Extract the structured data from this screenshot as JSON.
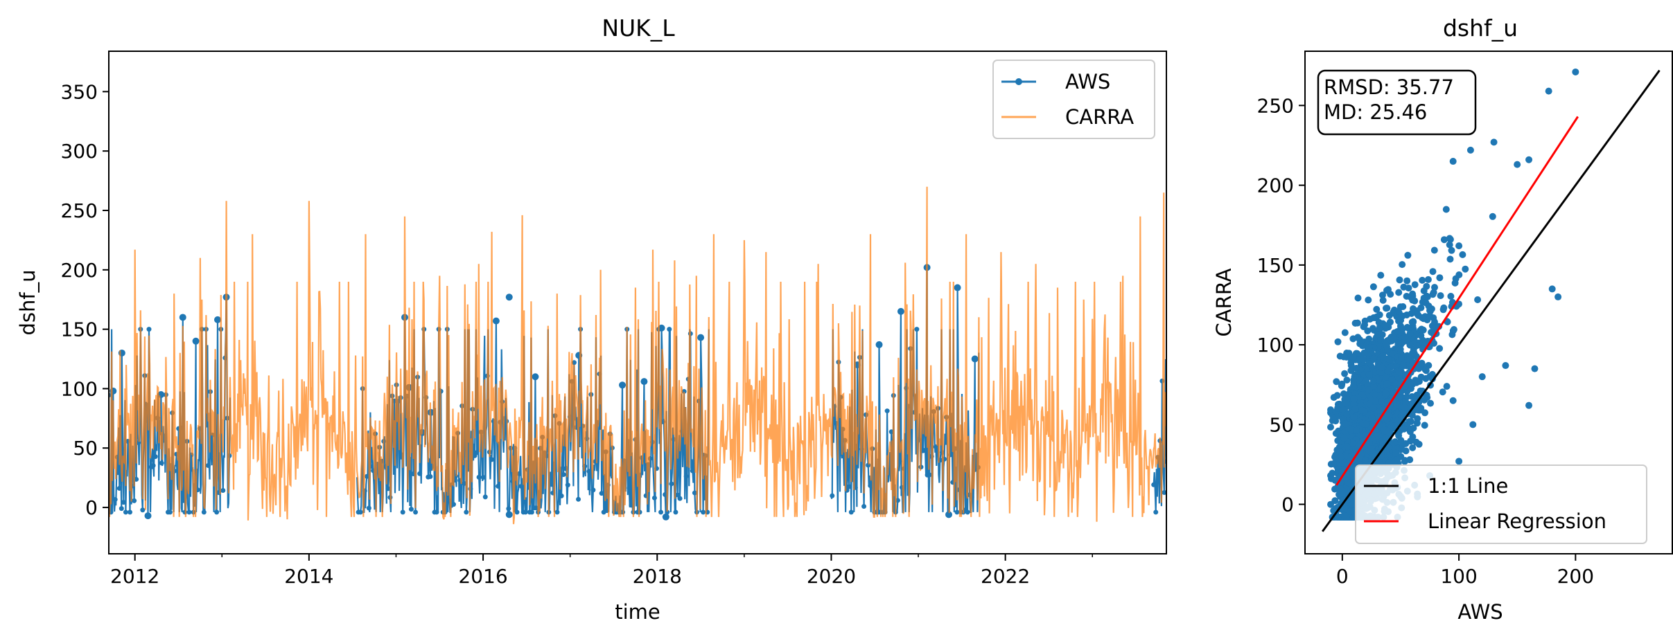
{
  "chart_data": [
    {
      "type": "line",
      "title": "NUK_L",
      "xlabel": "time",
      "ylabel": "dshf_u",
      "xlim": [
        2011.7,
        2023.85
      ],
      "ylim": [
        -39,
        384
      ],
      "x_ticks": [
        2012,
        2014,
        2016,
        2018,
        2020,
        2022
      ],
      "x_tick_labels": [
        "2012",
        "2014",
        "2016",
        "2018",
        "2020",
        "2022"
      ],
      "x_minor_ticks": [
        2013,
        2015,
        2017,
        2019,
        2021,
        2023
      ],
      "y_ticks": [
        0,
        50,
        100,
        150,
        200,
        250,
        300,
        350
      ],
      "y_tick_labels": [
        "0",
        "50",
        "100",
        "150",
        "200",
        "250",
        "300",
        "350"
      ],
      "grid": false,
      "legend": {
        "position": "upper right",
        "entries": [
          "AWS",
          "CARRA"
        ]
      },
      "series": [
        {
          "name": "AWS",
          "color": "#1f77b4",
          "marker": "circle",
          "available_periods": [
            [
              2011.7,
              2013.1
            ],
            [
              2014.55,
              2018.6
            ],
            [
              2020.0,
              2021.7
            ],
            [
              2023.7,
              2023.85
            ]
          ],
          "peaks": [
            [
              2011.75,
              98
            ],
            [
              2011.85,
              130
            ],
            [
              2012.3,
              95
            ],
            [
              2012.55,
              160
            ],
            [
              2012.7,
              140
            ],
            [
              2012.95,
              158
            ],
            [
              2013.05,
              177
            ],
            [
              2015.1,
              160
            ],
            [
              2015.15,
              101
            ],
            [
              2015.3,
              63
            ],
            [
              2015.4,
              80
            ],
            [
              2016.15,
              157
            ],
            [
              2016.3,
              177
            ],
            [
              2016.6,
              110
            ],
            [
              2017.1,
              128
            ],
            [
              2017.6,
              103
            ],
            [
              2017.85,
              106
            ],
            [
              2018.05,
              151
            ],
            [
              2018.5,
              143
            ],
            [
              2020.3,
              120
            ],
            [
              2020.55,
              137
            ],
            [
              2020.8,
              165
            ],
            [
              2021.1,
              202
            ],
            [
              2021.45,
              185
            ],
            [
              2021.65,
              125
            ]
          ],
          "troughs": [
            [
              2012.15,
              -7
            ],
            [
              2016.3,
              -6
            ],
            [
              2018.1,
              -8
            ],
            [
              2021.35,
              -6
            ]
          ]
        },
        {
          "name": "CARRA",
          "color": "#ff7f0e",
          "alpha": 0.7,
          "peaks": [
            [
              2011.9,
              120
            ],
            [
              2012.0,
              217
            ],
            [
              2012.45,
              180
            ],
            [
              2012.75,
              210
            ],
            [
              2013.05,
              258
            ],
            [
              2013.35,
              230
            ],
            [
              2013.75,
              192
            ],
            [
              2014.0,
              258
            ],
            [
              2014.35,
              190
            ],
            [
              2014.65,
              230
            ],
            [
              2015.1,
              245
            ],
            [
              2015.5,
              195
            ],
            [
              2015.95,
              205
            ],
            [
              2016.1,
              232
            ],
            [
              2016.45,
              246
            ],
            [
              2016.85,
              180
            ],
            [
              2017.35,
              200
            ],
            [
              2017.75,
              185
            ],
            [
              2017.95,
              217
            ],
            [
              2018.2,
              208
            ],
            [
              2018.45,
              195
            ],
            [
              2018.65,
              230
            ],
            [
              2019.0,
              225
            ],
            [
              2019.25,
              215
            ],
            [
              2019.5,
              210
            ],
            [
              2019.85,
              205
            ],
            [
              2020.45,
              230
            ],
            [
              2020.85,
              206
            ],
            [
              2021.1,
              270
            ],
            [
              2021.55,
              230
            ],
            [
              2021.95,
              215
            ],
            [
              2022.35,
              205
            ],
            [
              2022.6,
              185
            ],
            [
              2022.9,
              175
            ],
            [
              2023.35,
              195
            ],
            [
              2023.55,
              245
            ],
            [
              2023.82,
              265
            ]
          ],
          "troughs": [
            [
              2013.3,
              -11
            ],
            [
              2013.75,
              -10
            ],
            [
              2014.2,
              -8
            ],
            [
              2015.55,
              -10
            ],
            [
              2016.35,
              -14
            ],
            [
              2017.5,
              -7
            ],
            [
              2019.5,
              -2
            ],
            [
              2022.05,
              -5
            ],
            [
              2023.05,
              -12
            ]
          ]
        }
      ]
    },
    {
      "type": "scatter",
      "title": "dshf_u",
      "xlabel": "AWS",
      "ylabel": "CARRA",
      "xlim": [
        -32,
        283
      ],
      "ylim": [
        -31,
        284
      ],
      "x_ticks": [
        0,
        100,
        200
      ],
      "x_tick_labels": [
        "0",
        "100",
        "200"
      ],
      "y_ticks": [
        0,
        50,
        100,
        150,
        200,
        250
      ],
      "y_tick_labels": [
        "0",
        "50",
        "100",
        "150",
        "200",
        "250"
      ],
      "grid": false,
      "stats": {
        "rmsd": "RMSD: 35.77",
        "md": "MD: 25.46"
      },
      "legend": {
        "position": "lower right",
        "entries": [
          "1:1 Line",
          "Linear Regression"
        ]
      },
      "points_color": "#1f77b4",
      "notable_points": [
        [
          200,
          271
        ],
        [
          177,
          259
        ],
        [
          160,
          216
        ],
        [
          150,
          213
        ],
        [
          130,
          227
        ],
        [
          110,
          222
        ],
        [
          95,
          215
        ],
        [
          180,
          135
        ],
        [
          185,
          130
        ],
        [
          165,
          85
        ],
        [
          160,
          62
        ],
        [
          140,
          87
        ],
        [
          120,
          80
        ],
        [
          112,
          50
        ],
        [
          100,
          27
        ],
        [
          95,
          65
        ],
        [
          75,
          18
        ],
        [
          62,
          12
        ],
        [
          50,
          5
        ],
        [
          40,
          26
        ]
      ],
      "cloud_summary": {
        "x_range": [
          -10,
          130
        ],
        "y_range": [
          -8,
          200
        ],
        "regression_slope": 1.1,
        "regression_intercept": 22
      },
      "lines": [
        {
          "name": "1:1 Line",
          "color": "#000000",
          "from": [
            -17,
            -17
          ],
          "to": [
            272,
            272
          ]
        },
        {
          "name": "Linear Regression",
          "color": "#ff0000",
          "from": [
            -5,
            12
          ],
          "to": [
            202,
            243
          ]
        }
      ]
    }
  ]
}
